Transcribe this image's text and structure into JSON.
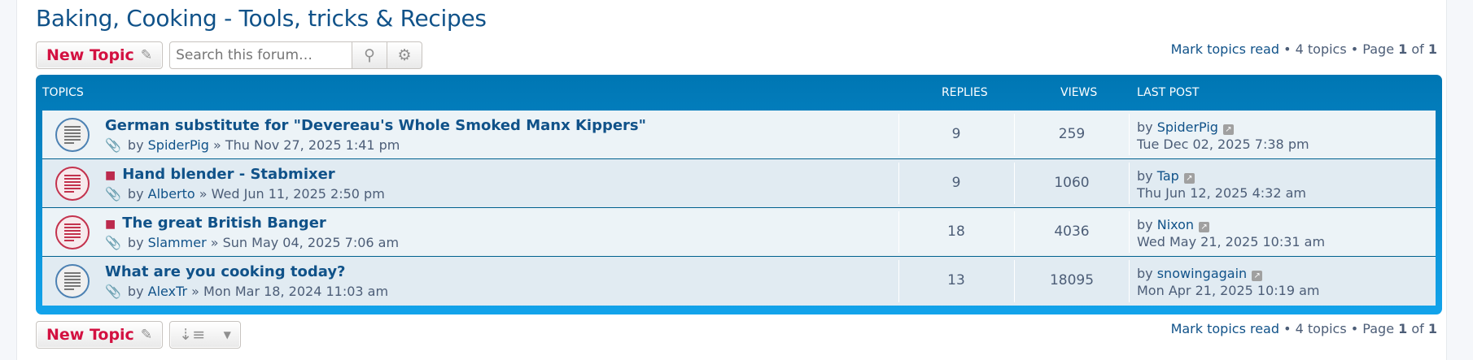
{
  "forum_title": "Baking, Cooking - Tools, tricks & Recipes",
  "new_topic_label": "New Topic",
  "search": {
    "placeholder": "Search this forum…"
  },
  "pagination": {
    "mark_read": "Mark topics read",
    "sep": " • ",
    "count": "4 topics",
    "page_label": "Page ",
    "page": "1",
    "of": " of ",
    "total": "1"
  },
  "header": {
    "topics": "TOPICS",
    "replies": "REPLIES",
    "views": "VIEWS",
    "last_post": "LAST POST"
  },
  "colors": {
    "accent": "#0076b3",
    "title": "#105289",
    "new_topic": "#d31141",
    "hot": "#bc2a4d"
  },
  "topics": [
    {
      "title": "German substitute for \"Devereau's Whole Smoked Manx Kippers\"",
      "hot": false,
      "author": "SpiderPig",
      "date": "Thu Nov 27, 2025 1:41 pm",
      "replies": "9",
      "views": "259",
      "last_by": "SpiderPig",
      "last_date": "Tue Dec 02, 2025 7:38 pm"
    },
    {
      "title": "Hand blender - Stabmixer",
      "hot": true,
      "author": "Alberto",
      "date": "Wed Jun 11, 2025 2:50 pm",
      "replies": "9",
      "views": "1060",
      "last_by": "Tap",
      "last_date": "Thu Jun 12, 2025 4:32 am"
    },
    {
      "title": "The great British Banger",
      "hot": true,
      "author": "Slammer",
      "date": "Sun May 04, 2025 7:06 am",
      "replies": "18",
      "views": "4036",
      "last_by": "Nixon",
      "last_date": "Wed May 21, 2025 10:31 am"
    },
    {
      "title": "What are you cooking today?",
      "hot": false,
      "author": "AlexTr",
      "date": "Mon Mar 18, 2024 11:03 am",
      "replies": "13",
      "views": "18095",
      "last_by": "snowingagain",
      "last_date": "Mon Apr 21, 2025 10:19 am"
    }
  ],
  "by": "by ",
  "raquo": " » "
}
